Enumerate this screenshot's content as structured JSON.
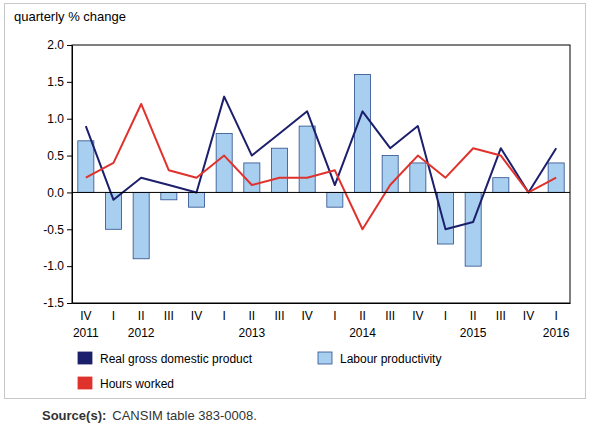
{
  "chart_data": {
    "type": "bar",
    "y_label": "quarterly % change",
    "categories": [
      "IV",
      "I",
      "II",
      "III",
      "IV",
      "I",
      "II",
      "III",
      "IV",
      "I",
      "II",
      "III",
      "IV",
      "I",
      "II",
      "III",
      "IV",
      "I"
    ],
    "category_years": [
      "2011",
      null,
      "2012",
      null,
      null,
      null,
      "2013",
      null,
      null,
      null,
      "2014",
      null,
      null,
      null,
      "2015",
      null,
      null,
      "2016"
    ],
    "series": [
      {
        "name": "Real gross domestic product",
        "type": "line",
        "color": "#1c1f6b",
        "values": [
          0.9,
          -0.1,
          0.2,
          0.1,
          0.0,
          1.3,
          0.5,
          0.8,
          1.1,
          0.1,
          1.1,
          0.6,
          0.9,
          -0.5,
          -0.4,
          0.6,
          0.0,
          0.6
        ]
      },
      {
        "name": "Labour productivity",
        "type": "bar",
        "color": "#a9cff0",
        "values": [
          0.7,
          -0.5,
          -0.9,
          -0.1,
          -0.2,
          0.8,
          0.4,
          0.6,
          0.9,
          -0.2,
          1.6,
          0.5,
          0.4,
          -0.7,
          -1.0,
          0.2,
          0.0,
          0.4
        ]
      },
      {
        "name": "Hours worked",
        "type": "line",
        "color": "#e0322c",
        "values": [
          0.2,
          0.4,
          1.2,
          0.3,
          0.2,
          0.5,
          0.1,
          0.2,
          0.2,
          0.3,
          -0.5,
          0.1,
          0.5,
          0.2,
          0.6,
          0.5,
          0.0,
          0.2
        ]
      }
    ],
    "ylim": [
      -1.5,
      2.0
    ],
    "yticks": [
      {
        "value": -1.5,
        "label": "-1.5"
      },
      {
        "value": -1.0,
        "label": "-1.0"
      },
      {
        "value": -0.5,
        "label": "-0.5"
      },
      {
        "value": 0.0,
        "label": "0.0"
      },
      {
        "value": 0.5,
        "label": "0.5"
      },
      {
        "value": 1.0,
        "label": "1.0"
      },
      {
        "value": 1.5,
        "label": "1.5"
      },
      {
        "value": 2.0,
        "label": "2.0"
      }
    ],
    "grid": false,
    "legend": "bottom",
    "source_label": "Source(s):",
    "source": "CANSIM table 383-0008."
  }
}
